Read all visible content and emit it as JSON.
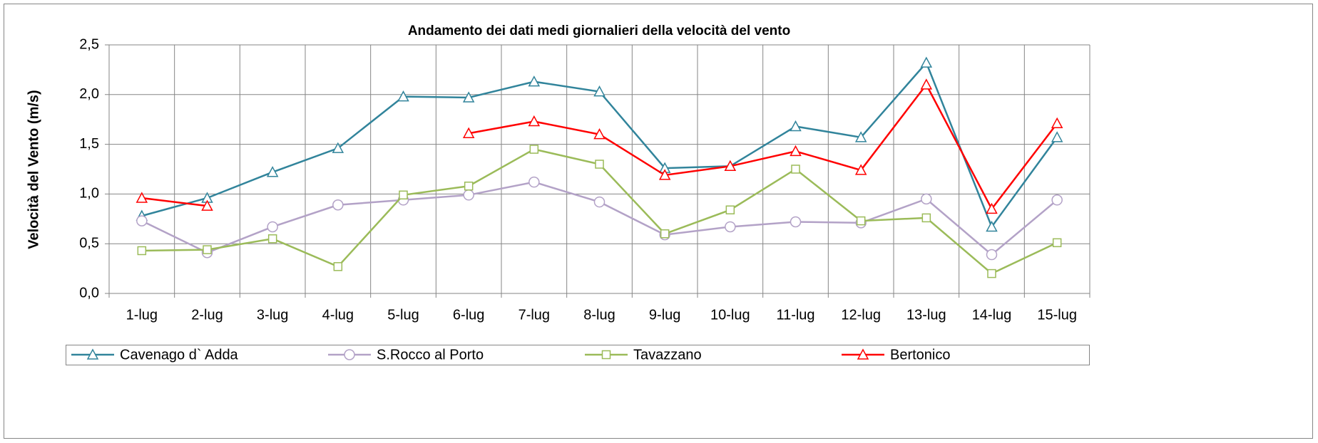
{
  "chart_data": {
    "type": "line",
    "title": "Andamento dei dati medi giornalieri della velocità del vento",
    "y_label": "Velocità del Vento (m/s)",
    "categories": [
      "1-lug",
      "2-lug",
      "3-lug",
      "4-lug",
      "5-lug",
      "6-lug",
      "7-lug",
      "8-lug",
      "9-lug",
      "10-lug",
      "11-lug",
      "12-lug",
      "13-lug",
      "14-lug",
      "15-lug"
    ],
    "series": [
      {
        "name": "Cavenago d` Adda",
        "color": "#31849b",
        "marker": "triangle",
        "values": [
          0.78,
          0.96,
          1.22,
          1.46,
          1.98,
          1.97,
          2.13,
          2.03,
          1.26,
          1.28,
          1.68,
          1.57,
          2.32,
          0.67,
          1.57
        ]
      },
      {
        "name": "S.Rocco al Porto",
        "color": "#b3a2c7",
        "marker": "circle",
        "values": [
          0.73,
          0.41,
          0.67,
          0.89,
          0.94,
          0.99,
          1.12,
          0.92,
          0.59,
          0.67,
          0.72,
          0.71,
          0.95,
          0.39,
          0.94
        ]
      },
      {
        "name": "Tavazzano",
        "color": "#9bbb59",
        "marker": "square",
        "values": [
          0.43,
          0.44,
          0.55,
          0.27,
          0.99,
          1.08,
          1.45,
          1.3,
          0.6,
          0.84,
          1.25,
          0.73,
          0.76,
          0.2,
          0.51
        ]
      },
      {
        "name": "Bertonico",
        "color": "#ff0000",
        "marker": "triangle",
        "values": [
          0.96,
          0.88,
          null,
          null,
          null,
          1.61,
          1.73,
          1.6,
          1.19,
          1.28,
          1.43,
          1.24,
          2.1,
          0.85,
          1.71
        ]
      }
    ],
    "ylim": [
      0,
      2.5
    ],
    "yticks": [
      {
        "value": 0,
        "label": "0,0"
      },
      {
        "value": 0.5,
        "label": "0,5"
      },
      {
        "value": 1,
        "label": "1,0"
      },
      {
        "value": 1.5,
        "label": "1,5"
      },
      {
        "value": 2,
        "label": "2,0"
      },
      {
        "value": 2.5,
        "label": "2,5"
      }
    ],
    "grid": true,
    "legend": "bottom"
  }
}
